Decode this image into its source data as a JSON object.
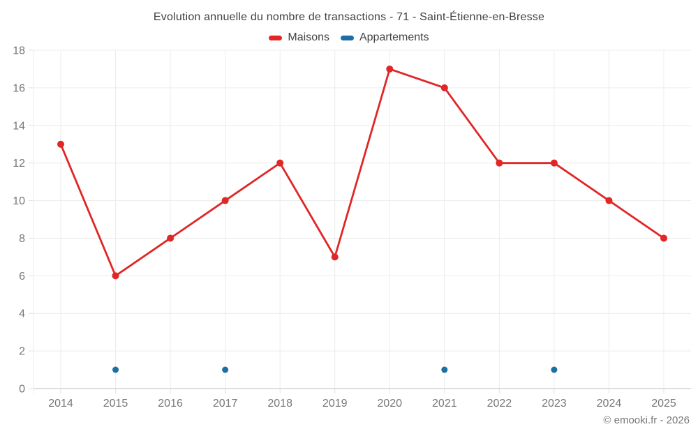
{
  "chart_data": {
    "type": "line",
    "title": "Evolution annuelle du nombre de transactions - 71 - Saint-Étienne-en-Bresse",
    "x": [
      2014,
      2015,
      2016,
      2017,
      2018,
      2019,
      2020,
      2021,
      2022,
      2023,
      2024,
      2025
    ],
    "series": [
      {
        "name": "Maisons",
        "color": "#e02626",
        "line": true,
        "marker": "circle",
        "values": [
          13,
          6,
          8,
          10,
          12,
          7,
          17,
          16,
          12,
          12,
          10,
          8
        ]
      },
      {
        "name": "Appartements",
        "color": "#1c6ea4",
        "line": false,
        "marker": "circle",
        "values": [
          null,
          1,
          null,
          1,
          null,
          null,
          null,
          1,
          null,
          1,
          null,
          null
        ]
      }
    ],
    "ylim": [
      0,
      18
    ],
    "ytick_step": 2,
    "grid": true,
    "legend_position": "top",
    "xlabel": "",
    "ylabel": ""
  },
  "footer": {
    "copyright": "© emooki.fr - 2026"
  },
  "theme": {
    "background": "#ffffff",
    "grid_color": "#ececec",
    "axis_color": "#d4d4d4",
    "tick_color": "#e0e0e0",
    "axis_label_color": "#777777",
    "title_color": "#3f4045",
    "legend_label_color": "#434343",
    "copyright_color": "#767676"
  }
}
